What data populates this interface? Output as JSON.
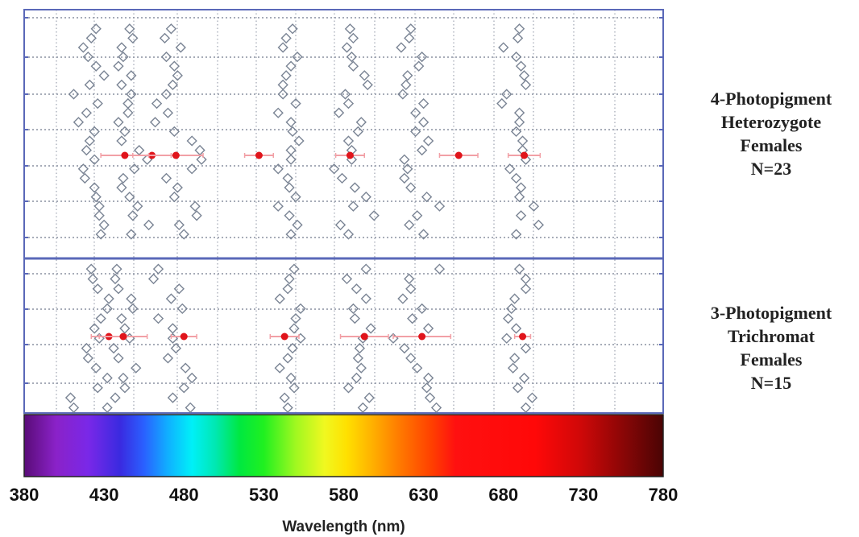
{
  "chart_data": {
    "type": "scatter",
    "xlabel": "Wavelength (nm)",
    "xlim": [
      380,
      780
    ],
    "xticks": [
      380,
      430,
      480,
      530,
      580,
      630,
      680,
      730,
      780
    ],
    "grid": true,
    "colors": {
      "markers": "#7a8494",
      "means": "#e0141b",
      "error_bars": "#f2a0a6",
      "frame": "#5a68b8",
      "grid": "#8a90a0"
    },
    "panels": [
      {
        "label_lines": [
          "4-Photopigment",
          "Heterozygote",
          "Females",
          "N=23"
        ],
        "group_means": [
          {
            "x": 443,
            "err": 15
          },
          {
            "x": 460,
            "err": 12
          },
          {
            "x": 475,
            "err": 17
          },
          {
            "x": 527,
            "err": 9
          },
          {
            "x": 584,
            "err": 9
          },
          {
            "x": 652,
            "err": 12
          },
          {
            "x": 693,
            "err": 10
          }
        ],
        "subjects": [
          {
            "row": 0.5,
            "x": [
              425,
              446,
              472,
              548,
              584,
              622,
              690
            ]
          },
          {
            "row": 1.5,
            "x": [
              422,
              448,
              468,
              544,
              586,
              621,
              689
            ]
          },
          {
            "row": 2.5,
            "x": [
              417,
              441,
              478,
              542,
              582,
              616,
              680
            ]
          },
          {
            "row": 3.5,
            "x": [
              420,
              442,
              469,
              551,
              585,
              629,
              688
            ]
          },
          {
            "row": 4.5,
            "x": [
              425,
              439,
              474,
              547,
              586,
              627,
              691
            ]
          },
          {
            "row": 5.5,
            "x": [
              430,
              447,
              476,
              544,
              593,
              620,
              693
            ]
          },
          {
            "row": 6.5,
            "x": [
              421,
              441,
              473,
              542,
              595,
              619,
              694
            ]
          },
          {
            "row": 7.5,
            "x": [
              411,
              447,
              469,
              542,
              581,
              617,
              682
            ]
          },
          {
            "row": 8.5,
            "x": [
              426,
              445,
              463,
              550,
              583,
              630,
              679
            ]
          },
          {
            "row": 9.5,
            "x": [
              419,
              445,
              470,
              539,
              577,
              625,
              690
            ]
          },
          {
            "row": 10.5,
            "x": [
              414,
              439,
              462,
              547,
              591,
              630,
              690
            ]
          },
          {
            "row": 11.5,
            "x": [
              424,
              443,
              474,
              548,
              589,
              625,
              688
            ]
          },
          {
            "row": 12.5,
            "x": [
              421,
              441,
              485,
              552,
              583,
              633,
              692
            ]
          },
          {
            "row": 13.5,
            "x": [
              419,
              452,
              490,
              547,
              585,
              629,
              692
            ]
          },
          {
            "row": 14.5,
            "x": [
              424,
              457,
              491,
              547,
              585,
              618,
              694
            ]
          },
          {
            "row": 15.5,
            "x": [
              417,
              449,
              485,
              539,
              574,
              620,
              684
            ]
          },
          {
            "row": 16.5,
            "x": [
              418,
              442,
              469,
              545,
              579,
              618,
              688
            ]
          },
          {
            "row": 17.5,
            "x": [
              424,
              441,
              476,
              546,
              587,
              622,
              691
            ]
          },
          {
            "row": 18.5,
            "x": [
              425,
              446,
              474,
              550,
              594,
              632,
              690
            ]
          },
          {
            "row": 19.5,
            "x": [
              427,
              451,
              487,
              539,
              586,
              640,
              699
            ]
          },
          {
            "row": 20.5,
            "x": [
              427,
              448,
              488,
              546,
              599,
              626,
              691
            ]
          },
          {
            "row": 21.5,
            "x": [
              430,
              458,
              477,
              551,
              578,
              621,
              702
            ]
          },
          {
            "row": 22.5,
            "x": [
              428,
              447,
              480,
              547,
              583,
              630,
              688
            ]
          }
        ]
      },
      {
        "label_lines": [
          "3-Photopigment",
          "Trichromat",
          "Females",
          "N=15"
        ],
        "group_means": [
          {
            "x": 433,
            "err": 11
          },
          {
            "x": 442,
            "err": 15
          },
          {
            "x": 480,
            "err": 8
          },
          {
            "x": 543,
            "err": 9
          },
          {
            "x": 593,
            "err": 15
          },
          {
            "x": 629,
            "err": 18
          },
          {
            "x": 692,
            "err": 5
          }
        ],
        "subjects": [
          {
            "row": 0.5,
            "x": [
              422,
              438,
              464,
              549,
              594,
              640,
              690
            ]
          },
          {
            "row": 1.5,
            "x": [
              423,
              437,
              461,
              546,
              582,
              621,
              694
            ]
          },
          {
            "row": 2.5,
            "x": [
              426,
              439,
              477,
              545,
              588,
              622,
              694
            ]
          },
          {
            "row": 3.5,
            "x": [
              433,
              447,
              472,
              540,
              594,
              617,
              687
            ]
          },
          {
            "row": 4.5,
            "x": [
              432,
              448,
              479,
              553,
              586,
              629,
              685
            ]
          },
          {
            "row": 5.5,
            "x": [
              428,
              441,
              464,
              550,
              587,
              623,
              683
            ]
          },
          {
            "row": 6.5,
            "x": [
              424,
              443,
              473,
              549,
              597,
              633,
              688
            ]
          },
          {
            "row": 7.5,
            "x": [
              427,
              446,
              473,
              553,
              592,
              611,
              682
            ]
          },
          {
            "row": 8.5,
            "x": [
              419,
              436,
              475,
              548,
              590,
              618,
              694
            ]
          },
          {
            "row": 9.5,
            "x": [
              420,
              439,
              470,
              545,
              589,
              622,
              687
            ]
          },
          {
            "row": 10.5,
            "x": [
              425,
              450,
              481,
              540,
              591,
              626,
              686
            ]
          },
          {
            "row": 11.5,
            "x": [
              432,
              442,
              485,
              547,
              588,
              633,
              693
            ]
          },
          {
            "row": 12.5,
            "x": [
              426,
              443,
              480,
              549,
              583,
              632,
              689
            ]
          },
          {
            "row": 13.5,
            "x": [
              409,
              437,
              473,
              543,
              596,
              634,
              698
            ]
          },
          {
            "row": 14.5,
            "x": [
              411,
              432,
              484,
              545,
              592,
              638,
              694
            ]
          }
        ]
      }
    ],
    "spectrum_stops": [
      {
        "nm": 380,
        "color": "#5a0c78"
      },
      {
        "nm": 400,
        "color": "#8a22c8"
      },
      {
        "nm": 420,
        "color": "#7a28e8"
      },
      {
        "nm": 440,
        "color": "#3a2ae0"
      },
      {
        "nm": 455,
        "color": "#2a60ff"
      },
      {
        "nm": 470,
        "color": "#10b0ff"
      },
      {
        "nm": 485,
        "color": "#00f0f8"
      },
      {
        "nm": 500,
        "color": "#00e8b0"
      },
      {
        "nm": 515,
        "color": "#00e840"
      },
      {
        "nm": 530,
        "color": "#20f020"
      },
      {
        "nm": 550,
        "color": "#a0f820"
      },
      {
        "nm": 568,
        "color": "#f0f820"
      },
      {
        "nm": 582,
        "color": "#ffe000"
      },
      {
        "nm": 598,
        "color": "#ffb000"
      },
      {
        "nm": 615,
        "color": "#ff7a00"
      },
      {
        "nm": 635,
        "color": "#ff4000"
      },
      {
        "nm": 650,
        "color": "#ff1010"
      },
      {
        "nm": 700,
        "color": "#ff0808"
      },
      {
        "nm": 728,
        "color": "#d00808"
      },
      {
        "nm": 755,
        "color": "#8a0606"
      },
      {
        "nm": 780,
        "color": "#4a0404"
      }
    ]
  }
}
